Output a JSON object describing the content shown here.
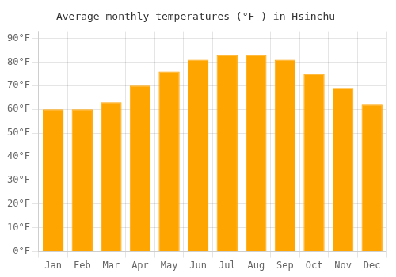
{
  "chart_data": {
    "type": "bar",
    "title": "Average monthly temperatures (°F ) in Hsinchu",
    "categories": [
      "Jan",
      "Feb",
      "Mar",
      "Apr",
      "May",
      "Jun",
      "Jul",
      "Aug",
      "Sep",
      "Oct",
      "Nov",
      "Dec"
    ],
    "values": [
      60,
      60,
      63,
      70,
      76,
      81,
      83,
      83,
      81,
      75,
      69,
      62
    ],
    "color": "#FFA500",
    "ylim": [
      0,
      93
    ],
    "yticks": [
      {
        "value": 0,
        "label": "0°F"
      },
      {
        "value": 10,
        "label": "10°F"
      },
      {
        "value": 20,
        "label": "20°F"
      },
      {
        "value": 30,
        "label": "30°F"
      },
      {
        "value": 40,
        "label": "40°F"
      },
      {
        "value": 50,
        "label": "50°F"
      },
      {
        "value": 60,
        "label": "60°F"
      },
      {
        "value": 70,
        "label": "70°F"
      },
      {
        "value": 80,
        "label": "80°F"
      },
      {
        "value": 90,
        "label": "90°F"
      }
    ],
    "grid": true
  }
}
